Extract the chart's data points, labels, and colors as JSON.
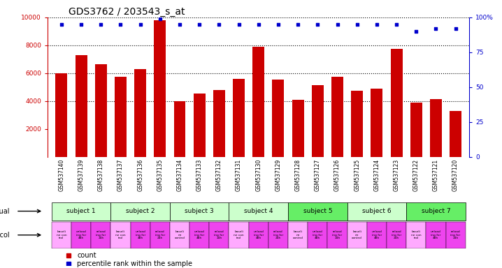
{
  "title": "GDS3762 / 203543_s_at",
  "samples": [
    "GSM537140",
    "GSM537139",
    "GSM537138",
    "GSM537137",
    "GSM537136",
    "GSM537135",
    "GSM537134",
    "GSM537133",
    "GSM537132",
    "GSM537131",
    "GSM537130",
    "GSM537129",
    "GSM537128",
    "GSM537127",
    "GSM537126",
    "GSM537125",
    "GSM537124",
    "GSM537123",
    "GSM537122",
    "GSM537121",
    "GSM537120"
  ],
  "counts": [
    6000,
    7300,
    6650,
    5750,
    6300,
    9800,
    4000,
    4550,
    4800,
    5600,
    7900,
    5550,
    4100,
    5150,
    5750,
    4750,
    4900,
    7750,
    3900,
    4150,
    3300
  ],
  "percentile_ranks": [
    95,
    95,
    95,
    95,
    95,
    99,
    95,
    95,
    95,
    95,
    95,
    95,
    95,
    95,
    95,
    95,
    95,
    95,
    90,
    92,
    92
  ],
  "bar_color": "#cc0000",
  "dot_color": "#0000cc",
  "ylim_left": [
    0,
    10000
  ],
  "ylim_right": [
    0,
    100
  ],
  "yticks_left": [
    2000,
    4000,
    6000,
    8000,
    10000
  ],
  "yticks_right": [
    0,
    25,
    50,
    75,
    100
  ],
  "grid_lines": [
    4000,
    6000,
    8000,
    10000
  ],
  "subjects": [
    {
      "label": "subject 1",
      "start": 0,
      "end": 3,
      "color": "#ccffcc"
    },
    {
      "label": "subject 2",
      "start": 3,
      "end": 6,
      "color": "#ccffcc"
    },
    {
      "label": "subject 3",
      "start": 6,
      "end": 9,
      "color": "#ccffcc"
    },
    {
      "label": "subject 4",
      "start": 9,
      "end": 12,
      "color": "#ccffcc"
    },
    {
      "label": "subject 5",
      "start": 12,
      "end": 15,
      "color": "#66ee66"
    },
    {
      "label": "subject 6",
      "start": 15,
      "end": 18,
      "color": "#ccffcc"
    },
    {
      "label": "subject 7",
      "start": 18,
      "end": 21,
      "color": "#66ee66"
    }
  ],
  "protocols": [
    {
      "label": "baseli\nne con\ntrol",
      "color": "#ffaaff"
    },
    {
      "label": "unload\ning for\n48h",
      "color": "#ee44ee"
    },
    {
      "label": "reload\ning for\n24h",
      "color": "#ee44ee"
    },
    {
      "label": "baseli\nne con\ntrol",
      "color": "#ffaaff"
    },
    {
      "label": "unload\ning for\n48h",
      "color": "#ee44ee"
    },
    {
      "label": "reload\ning for\n24h",
      "color": "#ee44ee"
    },
    {
      "label": "baseli\nne\ncontrol",
      "color": "#ffaaff"
    },
    {
      "label": "unload\ning for\n48h",
      "color": "#ee44ee"
    },
    {
      "label": "reload\ning for\n24h",
      "color": "#ee44ee"
    },
    {
      "label": "baseli\nne con\ntrol",
      "color": "#ffaaff"
    },
    {
      "label": "unload\ning for\n48h",
      "color": "#ee44ee"
    },
    {
      "label": "reload\ning for\n24h",
      "color": "#ee44ee"
    },
    {
      "label": "baseli\nne\ncontrol",
      "color": "#ffaaff"
    },
    {
      "label": "unload\ning for\n48h",
      "color": "#ee44ee"
    },
    {
      "label": "reload\ning for\n24h",
      "color": "#ee44ee"
    },
    {
      "label": "baseli\nne\ncontrol",
      "color": "#ffaaff"
    },
    {
      "label": "unload\ning for\n48h",
      "color": "#ee44ee"
    },
    {
      "label": "reload\ning for\n24h",
      "color": "#ee44ee"
    },
    {
      "label": "baseli\nne con\ntrol",
      "color": "#ffaaff"
    },
    {
      "label": "unload\ning for\n48h",
      "color": "#ee44ee"
    },
    {
      "label": "reload\ning for\n24h",
      "color": "#ee44ee"
    }
  ],
  "bg_color": "#ffffff",
  "title_fontsize": 10,
  "tick_fontsize": 6.5,
  "label_fontsize": 7.5
}
